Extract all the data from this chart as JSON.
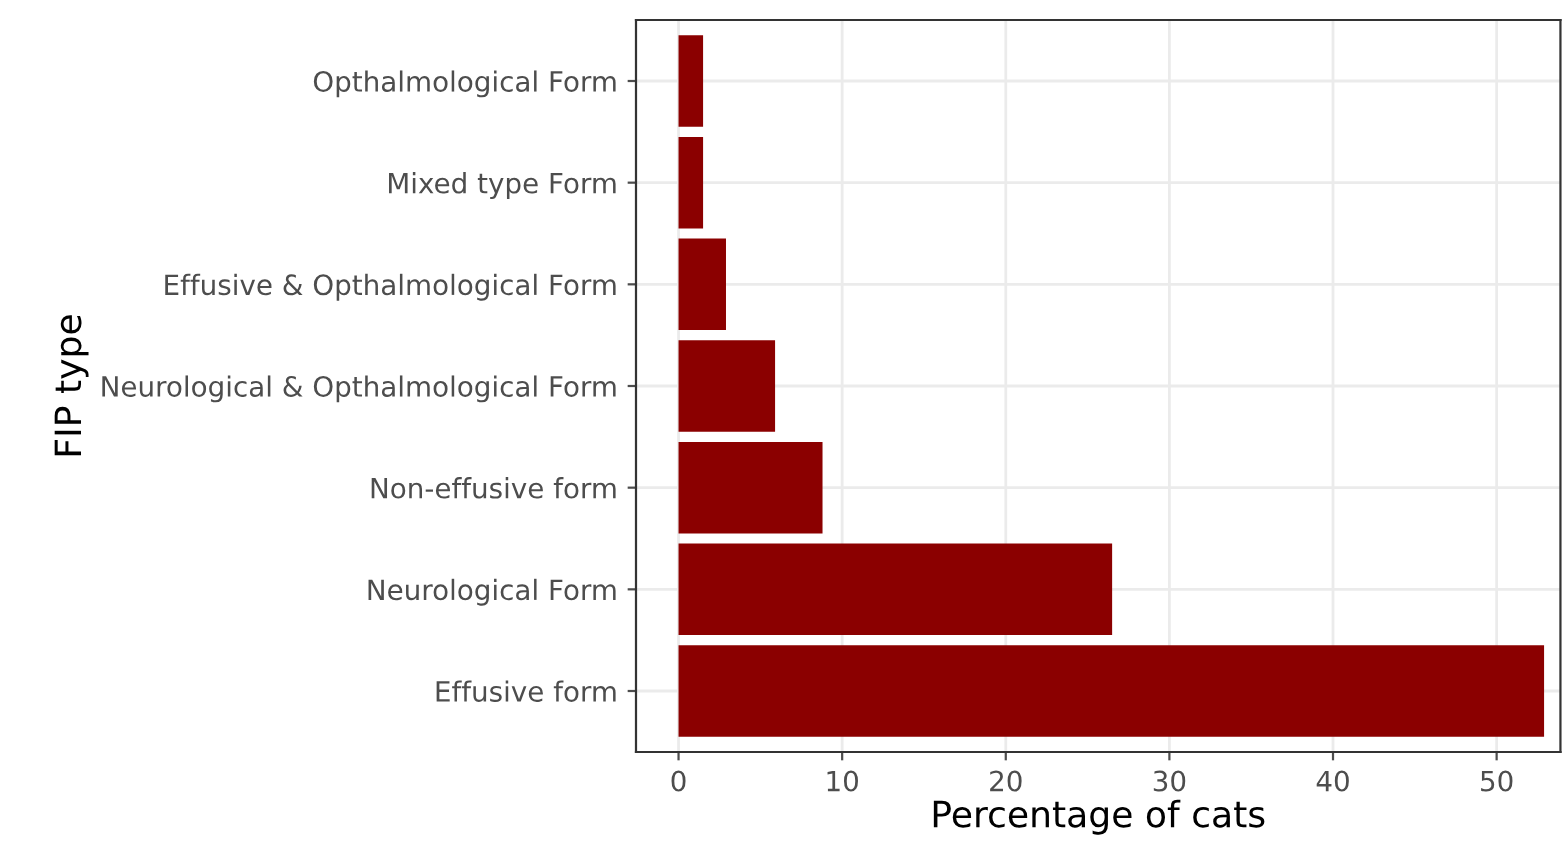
{
  "chart_data": {
    "type": "bar",
    "orientation": "horizontal",
    "xlabel": "Percentage of cats",
    "ylabel": "FIP type",
    "categories": [
      "Opthalmological Form",
      "Mixed type Form",
      "Effusive & Opthalmological Form",
      "Neurological & Opthalmological Form",
      "Non-effusive form",
      "Neurological Form",
      "Effusive form"
    ],
    "values": [
      1.5,
      1.5,
      2.9,
      5.9,
      8.8,
      26.5,
      52.9
    ],
    "color": "#8b0000",
    "xlim": [
      -2.6,
      53.9
    ],
    "xticks": [
      0,
      10,
      20,
      30,
      40,
      50
    ],
    "grid": true
  }
}
